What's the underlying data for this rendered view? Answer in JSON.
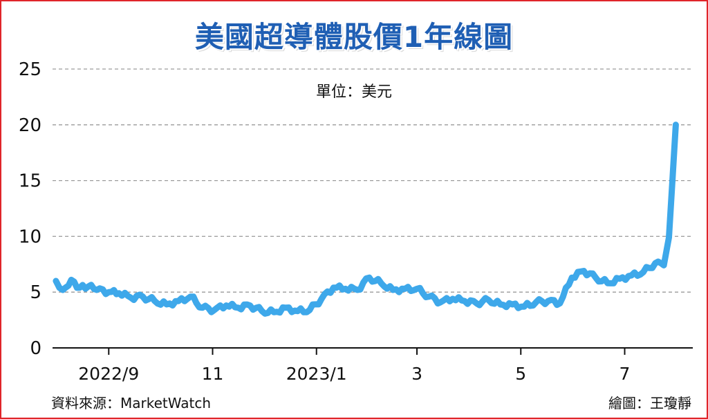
{
  "chart_data": {
    "type": "line",
    "title": "美國超導體股價1年線圖",
    "unit_label": "單位：美元",
    "ylim": [
      0,
      25
    ],
    "y_ticks": [
      "0",
      "5",
      "10",
      "15",
      "20",
      "25"
    ],
    "x_tick_labels": [
      "2022/9",
      "11",
      "2023/1",
      "3",
      "5",
      "7"
    ],
    "grid": true,
    "line_color": "#3ea8ea",
    "series": [
      {
        "x": [
          "2022-08-01",
          "2022-08-05",
          "2022-08-10",
          "2022-08-15",
          "2022-08-20",
          "2022-08-25",
          "2022-09-01",
          "2022-09-07",
          "2022-09-14",
          "2022-09-21",
          "2022-09-28",
          "2022-10-05",
          "2022-10-12",
          "2022-10-19",
          "2022-10-26",
          "2022-11-02",
          "2022-11-09",
          "2022-11-16",
          "2022-11-23",
          "2022-11-30",
          "2022-12-07",
          "2022-12-14",
          "2022-12-21",
          "2022-12-28",
          "2023-01-04",
          "2023-01-11",
          "2023-01-18",
          "2023-01-25",
          "2023-02-01",
          "2023-02-08",
          "2023-02-15",
          "2023-02-22",
          "2023-03-01",
          "2023-03-08",
          "2023-03-15",
          "2023-03-22",
          "2023-03-29",
          "2023-04-05",
          "2023-04-12",
          "2023-04-19",
          "2023-04-26",
          "2023-05-03",
          "2023-05-10",
          "2023-05-17",
          "2023-05-24",
          "2023-05-31",
          "2023-06-07",
          "2023-06-14",
          "2023-06-21",
          "2023-06-28",
          "2023-07-05",
          "2023-07-12",
          "2023-07-19",
          "2023-07-24",
          "2023-07-27",
          "2023-07-31"
        ],
        "y": [
          6.0,
          5.2,
          6.1,
          5.4,
          5.5,
          5.2,
          5.0,
          4.9,
          4.5,
          4.6,
          4.2,
          3.9,
          4.2,
          4.6,
          3.6,
          3.4,
          3.8,
          3.6,
          3.8,
          3.3,
          3.2,
          3.6,
          3.3,
          3.4,
          4.4,
          5.4,
          5.3,
          5.2,
          6.3,
          5.8,
          5.2,
          5.3,
          5.3,
          4.6,
          4.1,
          4.4,
          4.2,
          4.0,
          4.3,
          3.9,
          3.9,
          3.7,
          4.1,
          4.2,
          4.0,
          6.3,
          6.9,
          6.3,
          5.8,
          6.2,
          6.5,
          6.8,
          7.6,
          7.4,
          9.9,
          20.0
        ]
      }
    ]
  },
  "footer": {
    "source": "資料來源：MarketWatch",
    "credit": "繪圖：王瓊靜"
  }
}
